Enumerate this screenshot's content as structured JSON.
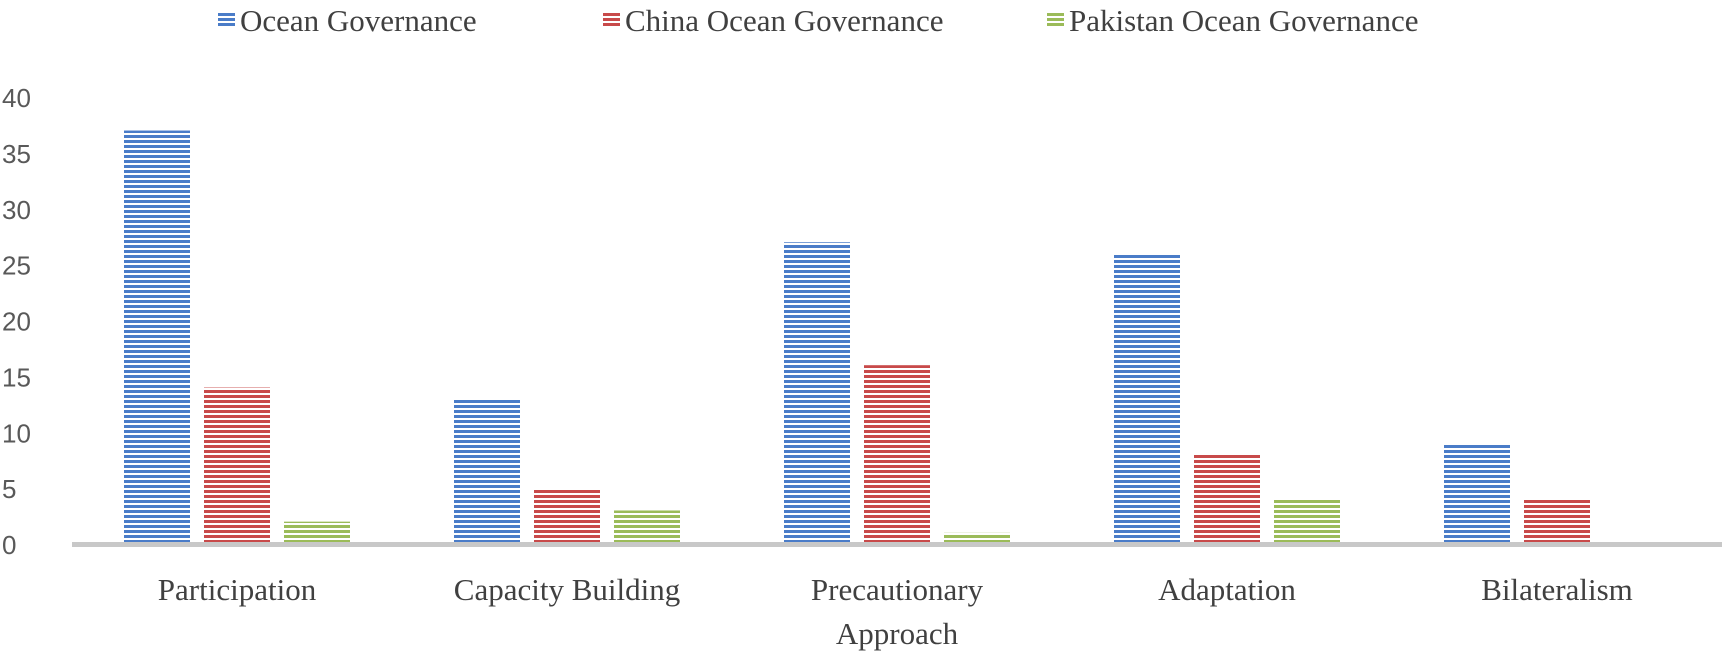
{
  "chart_data": {
    "type": "bar",
    "title": "",
    "xlabel": "",
    "ylabel": "",
    "categories": [
      [
        "Participation"
      ],
      [
        "Capacity Building"
      ],
      [
        "Precautionary",
        "Approach"
      ],
      [
        "Adaptation"
      ],
      [
        "Bilateralism"
      ]
    ],
    "series": [
      {
        "name": "Ocean Governance",
        "color": "#4a7cc8",
        "values": [
          37,
          13,
          27,
          26,
          9
        ]
      },
      {
        "name": "China Ocean Governance",
        "color": "#c84a4a",
        "values": [
          14,
          5,
          16,
          8,
          4
        ]
      },
      {
        "name": "Pakistan Ocean Governance",
        "color": "#9bbb59",
        "values": [
          2,
          3,
          1,
          4,
          0
        ]
      }
    ],
    "ylim": [
      0,
      40
    ],
    "yticks": [
      0,
      5,
      10,
      15,
      20,
      25,
      30,
      35,
      40
    ],
    "grid": false,
    "legend_position": "top"
  }
}
